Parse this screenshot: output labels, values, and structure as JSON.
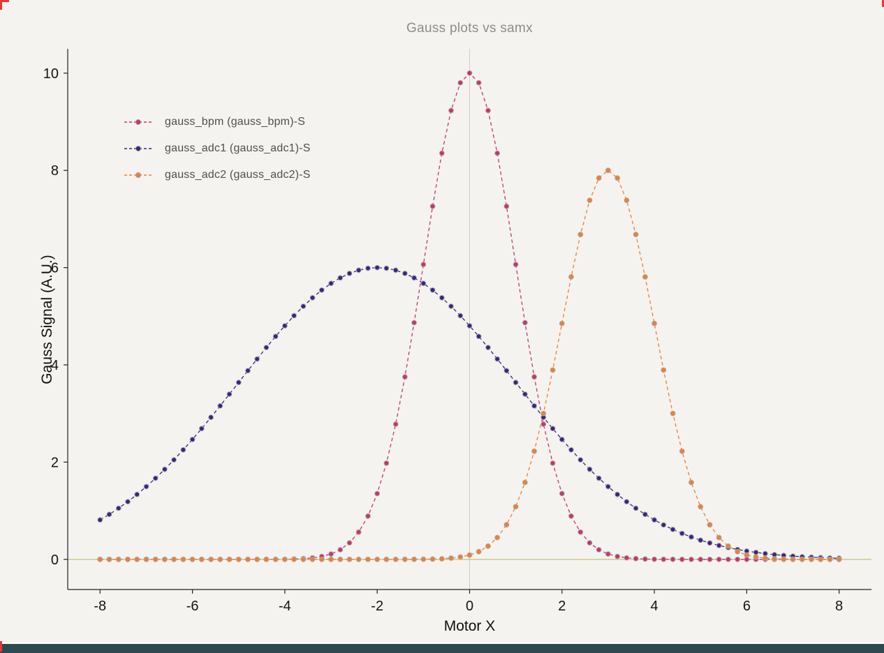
{
  "window": {
    "background": "#f4f3ef",
    "status_bar_color": "#2d4a4f",
    "accent_color": "#e8382f"
  },
  "chart_data": {
    "type": "line",
    "title": "Gauss plots vs samx",
    "xlabel": "Motor X",
    "ylabel": "Gauss Signal (A.U.)",
    "xlim": [
      -8.7,
      8.7
    ],
    "ylim": [
      -0.62,
      10.5
    ],
    "x_ticks": [
      -8,
      -6,
      -4,
      -2,
      0,
      2,
      4,
      6,
      8
    ],
    "y_ticks": [
      0,
      2,
      4,
      6,
      8,
      10
    ],
    "grid": {
      "vline_x": 0,
      "hline_y": 0
    },
    "legend_position": "top-left",
    "style": {
      "line_style": "dashed",
      "marker": "circle",
      "marker_outline": "#a9a9a9",
      "vline_color": "#c9cfc7",
      "hline_color": "#bdbd72",
      "axis_color": "#222222",
      "title_color": "#8c8c8c"
    },
    "x_start": -8,
    "x_step": 0.2,
    "n_points": 81,
    "series": [
      {
        "name": "gauss_bpm (gauss_bpm)-S",
        "color": "#c8336e",
        "fit": {
          "amplitude": 10,
          "center": 0,
          "sigma": 1
        },
        "values": [
          0,
          0,
          0,
          0,
          0,
          0,
          0,
          0,
          0,
          0,
          0,
          0,
          0,
          0,
          0,
          0,
          0,
          0,
          0.001,
          0.001,
          0.003,
          0.007,
          0.015,
          0.031,
          0.06,
          0.111,
          0.198,
          0.34,
          0.561,
          0.889,
          1.353,
          1.979,
          2.78,
          3.753,
          4.868,
          6.065,
          7.261,
          8.353,
          9.231,
          9.802,
          10,
          9.802,
          9.231,
          8.353,
          7.261,
          6.065,
          4.868,
          3.753,
          2.78,
          1.979,
          1.353,
          0.889,
          0.561,
          0.34,
          0.198,
          0.111,
          0.06,
          0.031,
          0.015,
          0.007,
          0.003,
          0.001,
          0.001,
          0,
          0,
          0,
          0,
          0,
          0,
          0,
          0,
          0,
          0,
          0,
          0,
          0,
          0,
          0,
          0,
          0,
          0
        ]
      },
      {
        "name": "gauss_adc1 (gauss_adc1)-S",
        "color": "#39257f",
        "fit": {
          "amplitude": 6,
          "center": -2,
          "sigma": 3
        },
        "values": [
          0.812,
          0.926,
          1.051,
          1.187,
          1.336,
          1.496,
          1.668,
          1.852,
          2.047,
          2.252,
          2.467,
          2.69,
          2.921,
          3.157,
          3.397,
          3.639,
          3.881,
          4.121,
          4.357,
          4.585,
          4.804,
          5.012,
          5.205,
          5.381,
          5.539,
          5.676,
          5.79,
          5.881,
          5.947,
          5.987,
          6,
          5.987,
          5.947,
          5.881,
          5.79,
          5.676,
          5.539,
          5.381,
          5.205,
          5.012,
          4.804,
          4.585,
          4.357,
          4.121,
          3.881,
          3.639,
          3.397,
          3.157,
          2.921,
          2.69,
          2.467,
          2.252,
          2.047,
          1.852,
          1.668,
          1.496,
          1.336,
          1.187,
          1.051,
          0.926,
          0.812,
          0.709,
          0.616,
          0.534,
          0.46,
          0.394,
          0.337,
          0.286,
          0.242,
          0.204,
          0.171,
          0.143,
          0.119,
          0.098,
          0.081,
          0.067,
          0.055,
          0.044,
          0.036,
          0.029,
          0.023
        ]
      },
      {
        "name": "gauss_adc2 (gauss_adc2)-S",
        "color": "#ee7f33",
        "fit": {
          "amplitude": 8,
          "center": 3,
          "sigma": 1
        },
        "values": [
          0,
          0,
          0,
          0,
          0,
          0,
          0,
          0,
          0,
          0,
          0,
          0,
          0,
          0,
          0,
          0,
          0,
          0,
          0,
          0,
          0,
          0,
          0,
          0,
          0,
          0,
          0,
          0,
          0,
          0,
          0,
          0,
          0,
          0.001,
          0.001,
          0.003,
          0.006,
          0.012,
          0.025,
          0.048,
          0.089,
          0.159,
          0.272,
          0.449,
          0.711,
          1.083,
          1.583,
          2.224,
          3.002,
          3.894,
          4.852,
          5.809,
          6.682,
          7.385,
          7.842,
          8,
          7.842,
          7.385,
          6.682,
          5.809,
          4.852,
          3.894,
          3.002,
          2.224,
          1.583,
          1.083,
          0.711,
          0.449,
          0.272,
          0.159,
          0.089,
          0.048,
          0.025,
          0.012,
          0.006,
          0.003,
          0.001,
          0.001,
          0,
          0,
          0
        ]
      }
    ]
  }
}
